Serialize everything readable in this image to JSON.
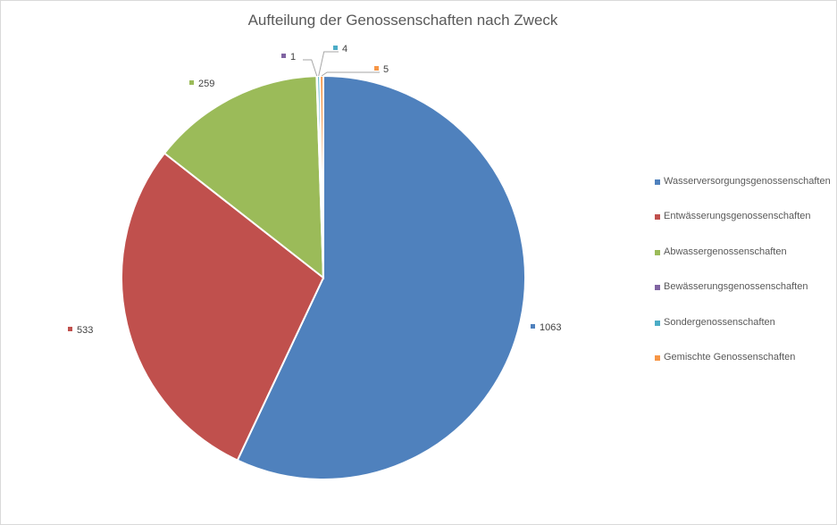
{
  "chart_data": {
    "type": "pie",
    "title": "Aufteilung der Genossenschaften nach Zweck",
    "series": [
      {
        "label": "Wasserversorgungsgenossenschaften",
        "value": 1063,
        "color": "#4F81BD"
      },
      {
        "label": "Entwässerungsgenossenschaften",
        "value": 533,
        "color": "#C0504D"
      },
      {
        "label": "Abwassergenossenschaften",
        "value": 259,
        "color": "#9BBB59"
      },
      {
        "label": "Bewässerungsgenossenschaften",
        "value": 1,
        "color": "#8064A2"
      },
      {
        "label": "Sondergenossenschaften",
        "value": 4,
        "color": "#4BACC6"
      },
      {
        "label": "Gemischte Genossenschaften",
        "value": 5,
        "color": "#F79646"
      }
    ],
    "legend_position": "right",
    "data_labels": "values"
  }
}
